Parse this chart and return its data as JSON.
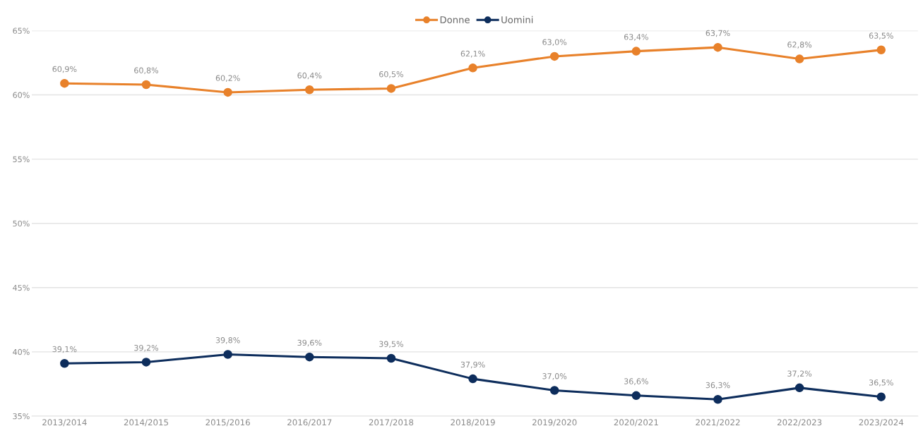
{
  "chart_data": {
    "type": "line",
    "categories": [
      "2013/2014",
      "2014/2015",
      "2015/2016",
      "2016/2017",
      "2017/2018",
      "2018/2019",
      "2019/2020",
      "2020/2021",
      "2021/2022",
      "2022/2023",
      "2023/2024"
    ],
    "series": [
      {
        "name": "Donne",
        "color": "#e8812a",
        "values": [
          60.9,
          60.8,
          60.2,
          60.4,
          60.5,
          62.1,
          63.0,
          63.4,
          63.7,
          62.8,
          63.5
        ],
        "value_labels": [
          "60,9%",
          "60,8%",
          "60,2%",
          "60,4%",
          "60,5%",
          "62,1%",
          "63,0%",
          "63,4%",
          "63,7%",
          "62,8%",
          "63,5%"
        ]
      },
      {
        "name": "Uomini",
        "color": "#0d2d5c",
        "values": [
          39.1,
          39.2,
          39.8,
          39.6,
          39.5,
          37.9,
          37.0,
          36.6,
          36.3,
          37.2,
          36.5
        ],
        "value_labels": [
          "39,1%",
          "39,2%",
          "39,8%",
          "39,6%",
          "39,5%",
          "37,9%",
          "37,0%",
          "36,6%",
          "36,3%",
          "37,2%",
          "36,5%"
        ]
      }
    ],
    "ylim": [
      35,
      65
    ],
    "yticks": [
      {
        "value": 35,
        "label": "35%"
      },
      {
        "value": 40,
        "label": "40%"
      },
      {
        "value": 45,
        "label": "45%"
      },
      {
        "value": 50,
        "label": "50%"
      },
      {
        "value": 55,
        "label": "55%"
      },
      {
        "value": 60,
        "label": "60%"
      },
      {
        "value": 65,
        "label": "65%"
      }
    ],
    "grid": "y",
    "legend": "top",
    "marker": "circle",
    "line_style": "solid"
  }
}
